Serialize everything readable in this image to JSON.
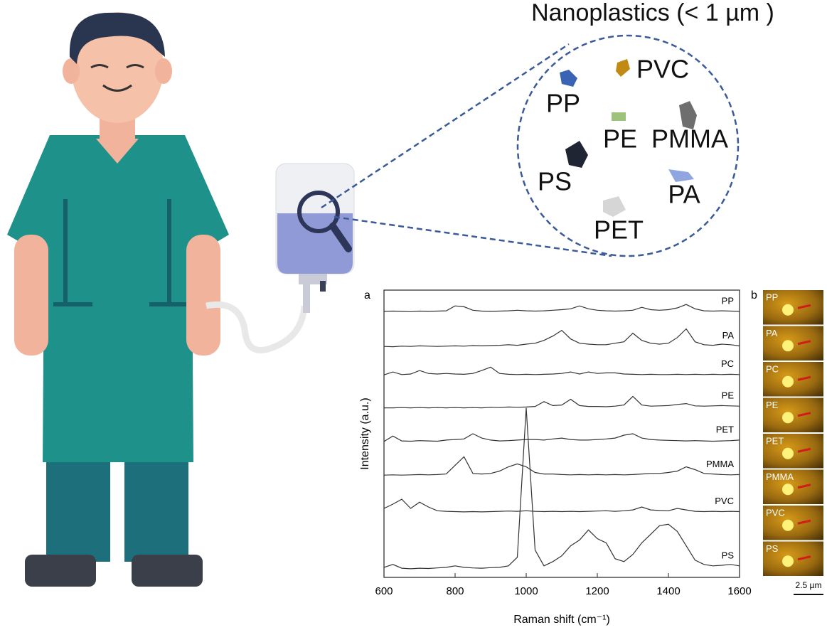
{
  "diagram": {
    "title": "Nanoplastics (< 1 µm )",
    "particles": [
      "PP",
      "PVC",
      "PE",
      "PMMA",
      "PS",
      "PA",
      "PET"
    ]
  },
  "chart_data": {
    "type": "line",
    "panel_label": "a",
    "xlabel": "Raman shift (cm⁻¹)",
    "ylabel": "Intensity (a.u.)",
    "xlim": [
      600,
      1600
    ],
    "xticks": [
      600,
      800,
      1000,
      1200,
      1400,
      1600
    ],
    "ylim": [
      0,
      10
    ],
    "color": "#333333",
    "x": [
      600,
      625,
      650,
      675,
      700,
      725,
      750,
      775,
      800,
      825,
      850,
      875,
      900,
      925,
      950,
      975,
      1000,
      1025,
      1050,
      1075,
      1100,
      1125,
      1150,
      1175,
      1200,
      1225,
      1250,
      1275,
      1300,
      1325,
      1350,
      1375,
      1400,
      1425,
      1450,
      1475,
      1500,
      1525,
      1550,
      1575,
      1600
    ],
    "series": [
      {
        "name": "PP",
        "values": [
          9.26,
          9.27,
          9.26,
          9.25,
          9.27,
          9.26,
          9.27,
          9.28,
          9.45,
          9.42,
          9.3,
          9.27,
          9.26,
          9.27,
          9.28,
          9.3,
          9.28,
          9.27,
          9.28,
          9.3,
          9.32,
          9.35,
          9.45,
          9.35,
          9.3,
          9.28,
          9.27,
          9.28,
          9.3,
          9.4,
          9.32,
          9.3,
          9.32,
          9.38,
          9.5,
          9.35,
          9.28,
          9.27,
          9.28,
          9.27,
          9.26
        ]
      },
      {
        "name": "PA",
        "values": [
          8.04,
          8.03,
          8.05,
          8.04,
          8.06,
          8.05,
          8.04,
          8.05,
          8.06,
          8.05,
          8.07,
          8.06,
          8.07,
          8.08,
          8.1,
          8.08,
          8.12,
          8.15,
          8.25,
          8.4,
          8.6,
          8.3,
          8.15,
          8.12,
          8.1,
          8.1,
          8.15,
          8.2,
          8.5,
          8.25,
          8.15,
          8.12,
          8.15,
          8.35,
          8.65,
          8.2,
          8.1,
          8.08,
          8.12,
          8.1,
          8.06
        ]
      },
      {
        "name": "PC",
        "values": [
          7.05,
          7.15,
          7.06,
          7.08,
          7.2,
          7.1,
          7.08,
          7.1,
          7.08,
          7.07,
          7.1,
          7.2,
          7.32,
          7.1,
          7.07,
          7.06,
          7.07,
          7.06,
          7.07,
          7.08,
          7.1,
          7.15,
          7.08,
          7.15,
          7.1,
          7.12,
          7.12,
          7.08,
          7.07,
          7.06,
          7.07,
          7.06,
          7.06,
          7.07,
          7.06,
          7.07,
          7.06,
          7.07,
          7.06,
          7.07,
          7.06
        ]
      },
      {
        "name": "PE",
        "values": [
          5.9,
          5.9,
          5.91,
          5.9,
          5.91,
          5.9,
          5.91,
          5.9,
          5.91,
          5.9,
          5.91,
          5.9,
          5.92,
          5.91,
          5.93,
          5.92,
          5.93,
          5.95,
          6.12,
          5.98,
          6.0,
          6.2,
          5.98,
          5.95,
          5.95,
          5.94,
          5.96,
          6.0,
          6.3,
          6.0,
          5.96,
          5.97,
          5.98,
          6.02,
          6.05,
          5.97,
          5.96,
          5.97,
          5.98,
          5.97,
          5.96
        ]
      },
      {
        "name": "PET",
        "values": [
          4.73,
          4.92,
          4.75,
          4.74,
          4.76,
          4.75,
          4.74,
          4.78,
          4.8,
          4.82,
          5.0,
          4.85,
          4.78,
          4.75,
          4.76,
          4.78,
          4.8,
          4.8,
          4.78,
          4.82,
          4.85,
          4.8,
          4.78,
          4.78,
          4.8,
          4.82,
          4.85,
          4.95,
          5.0,
          4.85,
          4.8,
          4.78,
          4.77,
          4.76,
          4.75,
          4.76,
          4.75,
          4.74,
          4.75,
          4.76,
          4.78
        ]
      },
      {
        "name": "PMMA",
        "values": [
          3.56,
          3.57,
          3.56,
          3.57,
          3.58,
          3.57,
          3.58,
          3.6,
          3.9,
          4.2,
          3.62,
          3.6,
          3.62,
          3.7,
          3.85,
          3.95,
          3.85,
          3.65,
          3.6,
          3.6,
          3.58,
          3.57,
          3.58,
          3.57,
          3.58,
          3.57,
          3.58,
          3.57,
          3.58,
          3.6,
          3.62,
          3.62,
          3.65,
          3.7,
          3.85,
          3.75,
          3.62,
          3.6,
          3.58,
          3.57,
          3.58
        ]
      },
      {
        "name": "PVC",
        "values": [
          2.4,
          2.55,
          2.72,
          2.4,
          2.62,
          2.45,
          2.32,
          2.3,
          2.29,
          2.28,
          2.29,
          2.28,
          2.29,
          2.3,
          2.31,
          2.3,
          2.32,
          2.3,
          2.29,
          2.3,
          2.29,
          2.3,
          2.29,
          2.3,
          2.31,
          2.32,
          2.3,
          2.32,
          2.35,
          2.45,
          2.35,
          2.33,
          2.32,
          2.4,
          2.35,
          2.3,
          2.29,
          2.3,
          2.29,
          2.3,
          2.29
        ]
      },
      {
        "name": "PS",
        "values": [
          0.35,
          0.45,
          0.32,
          0.3,
          0.32,
          0.31,
          0.33,
          0.35,
          0.4,
          0.35,
          0.33,
          0.32,
          0.34,
          0.35,
          0.4,
          0.7,
          5.9,
          0.95,
          0.4,
          0.55,
          0.75,
          1.1,
          1.3,
          1.65,
          1.35,
          1.2,
          0.65,
          0.55,
          0.8,
          1.2,
          1.5,
          1.8,
          1.85,
          1.6,
          1.1,
          0.6,
          0.45,
          0.4,
          0.42,
          0.45,
          0.4
        ]
      }
    ]
  },
  "micrographs": {
    "panel_label": "b",
    "labels": [
      "PP",
      "PA",
      "PC",
      "PE",
      "PET",
      "PMMA",
      "PVC",
      "PS"
    ],
    "scale_bar": "2.5 µm"
  }
}
